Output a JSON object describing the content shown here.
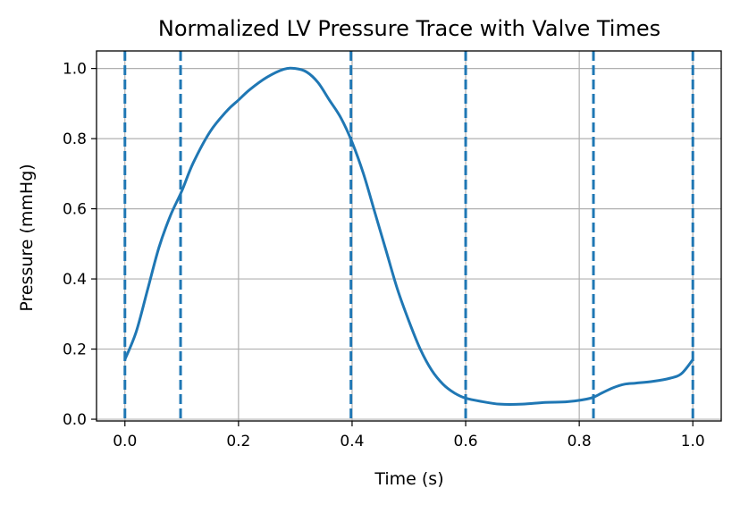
{
  "chart_data": {
    "type": "line",
    "title": "Normalized LV Pressure Trace with Valve Times",
    "xlabel": "Time (s)",
    "ylabel": "Pressure (mmHg)",
    "xlim": [
      -0.05,
      1.05
    ],
    "ylim": [
      -0.005,
      1.05
    ],
    "xticks": [
      "0.0",
      "0.2",
      "0.4",
      "0.6",
      "0.8",
      "1.0"
    ],
    "yticks": [
      "0.0",
      "0.2",
      "0.4",
      "0.6",
      "0.8",
      "1.0"
    ],
    "grid": true,
    "colors": {
      "line": "#1f77b4",
      "grid": "#b0b0b0"
    },
    "series": [
      {
        "x": [
          0.0,
          0.02,
          0.04,
          0.06,
          0.08,
          0.1,
          0.12,
          0.15,
          0.18,
          0.2,
          0.22,
          0.25,
          0.28,
          0.3,
          0.32,
          0.34,
          0.36,
          0.38,
          0.4,
          0.42,
          0.44,
          0.46,
          0.48,
          0.5,
          0.52,
          0.54,
          0.56,
          0.58,
          0.6,
          0.63,
          0.66,
          0.7,
          0.74,
          0.78,
          0.82,
          0.84,
          0.86,
          0.88,
          0.9,
          0.93,
          0.96,
          0.98,
          1.0
        ],
        "y": [
          0.17,
          0.25,
          0.37,
          0.49,
          0.58,
          0.65,
          0.73,
          0.82,
          0.88,
          0.91,
          0.94,
          0.975,
          0.998,
          1.0,
          0.99,
          0.96,
          0.91,
          0.86,
          0.79,
          0.7,
          0.59,
          0.48,
          0.37,
          0.28,
          0.2,
          0.14,
          0.1,
          0.075,
          0.06,
          0.05,
          0.043,
          0.043,
          0.048,
          0.05,
          0.06,
          0.075,
          0.09,
          0.1,
          0.103,
          0.108,
          0.117,
          0.13,
          0.17
        ]
      }
    ],
    "vlines": [
      0.0,
      0.098,
      0.398,
      0.6,
      0.825,
      1.0
    ]
  }
}
